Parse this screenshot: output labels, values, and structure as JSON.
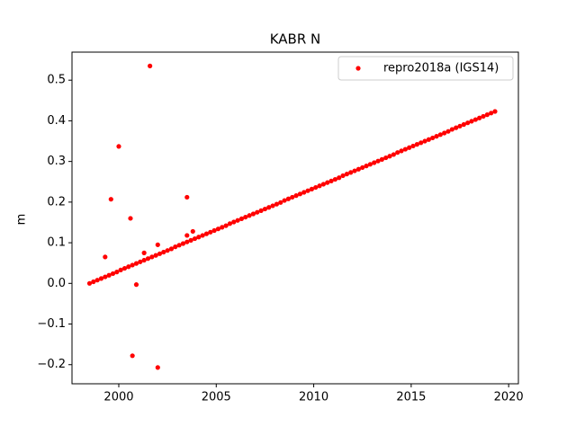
{
  "chart_data": {
    "type": "scatter",
    "title": "KABR N",
    "ylabel": "m",
    "x": [
      1998.5,
      1998.7,
      1998.9,
      1999.1,
      1999.3,
      1999.5,
      1999.7,
      1999.9,
      2000.1,
      2000.3,
      2000.5,
      2000.7,
      2000.9,
      2001.1,
      2001.3,
      2001.5,
      2001.7,
      2001.9,
      2002.1,
      2002.3,
      2002.5,
      2002.7,
      2002.9,
      2003.1,
      2003.3,
      2003.5,
      2003.7,
      2003.9,
      2004.1,
      2004.3,
      2004.5,
      2004.7,
      2004.9,
      2005.1,
      2005.3,
      2005.5,
      2005.7,
      2005.9,
      2006.1,
      2006.3,
      2006.5,
      2006.7,
      2006.9,
      2007.1,
      2007.3,
      2007.5,
      2007.7,
      2007.9,
      2008.1,
      2008.3,
      2008.5,
      2008.7,
      2008.9,
      2009.1,
      2009.3,
      2009.5,
      2009.7,
      2009.9,
      2010.1,
      2010.3,
      2010.5,
      2010.7,
      2010.9,
      2011.1,
      2011.3,
      2011.5,
      2011.7,
      2011.9,
      2012.1,
      2012.3,
      2012.5,
      2012.7,
      2012.9,
      2013.1,
      2013.3,
      2013.5,
      2013.7,
      2013.9,
      2014.1,
      2014.3,
      2014.5,
      2014.7,
      2014.9,
      2015.1,
      2015.3,
      2015.5,
      2015.7,
      2015.9,
      2016.1,
      2016.3,
      2016.5,
      2016.7,
      2016.9,
      2017.1,
      2017.3,
      2017.5,
      2017.7,
      2017.9,
      2018.1,
      2018.3,
      2018.5,
      2018.7,
      2018.9,
      2019.1,
      2019.3,
      1999.3,
      1999.6,
      2000.0,
      2000.6,
      2000.7,
      2000.9,
      2001.3,
      2001.6,
      2002.0,
      2002.0,
      2003.5,
      2003.5,
      2003.8
    ],
    "series": [
      {
        "name": "repro2018a (IGS14)",
        "color": "#ff0000",
        "values": [
          0.0,
          0.004,
          0.008,
          0.012,
          0.016,
          0.02,
          0.024,
          0.028,
          0.033,
          0.037,
          0.041,
          0.045,
          0.049,
          0.053,
          0.057,
          0.061,
          0.065,
          0.069,
          0.073,
          0.077,
          0.081,
          0.085,
          0.09,
          0.094,
          0.098,
          0.102,
          0.106,
          0.11,
          0.114,
          0.118,
          0.122,
          0.126,
          0.13,
          0.134,
          0.138,
          0.142,
          0.147,
          0.151,
          0.155,
          0.159,
          0.163,
          0.167,
          0.171,
          0.175,
          0.179,
          0.183,
          0.187,
          0.191,
          0.195,
          0.199,
          0.204,
          0.208,
          0.212,
          0.216,
          0.22,
          0.224,
          0.228,
          0.232,
          0.236,
          0.24,
          0.244,
          0.248,
          0.252,
          0.256,
          0.26,
          0.265,
          0.269,
          0.273,
          0.277,
          0.281,
          0.285,
          0.289,
          0.293,
          0.297,
          0.301,
          0.305,
          0.309,
          0.313,
          0.317,
          0.322,
          0.326,
          0.33,
          0.334,
          0.338,
          0.342,
          0.346,
          0.35,
          0.354,
          0.358,
          0.362,
          0.366,
          0.37,
          0.374,
          0.379,
          0.383,
          0.387,
          0.391,
          0.395,
          0.399,
          0.403,
          0.407,
          0.411,
          0.415,
          0.419,
          0.423,
          0.065,
          0.207,
          0.337,
          0.16,
          -0.178,
          -0.003,
          0.075,
          0.535,
          -0.207,
          0.095,
          0.212,
          0.118,
          0.128
        ]
      }
    ],
    "xlim": [
      1997.6,
      2020.5
    ],
    "xticks": [
      2000,
      2005,
      2010,
      2015,
      2020
    ],
    "ylim": [
      -0.247,
      0.569
    ],
    "yticks": [
      {
        "value": -0.2,
        "label": "−0.2"
      },
      {
        "value": -0.1,
        "label": "−0.1"
      },
      {
        "value": 0,
        "label": "0.0"
      },
      0.1,
      0.2,
      0.3,
      0.4,
      0.5
    ],
    "legend": "upper right",
    "grid": false
  }
}
